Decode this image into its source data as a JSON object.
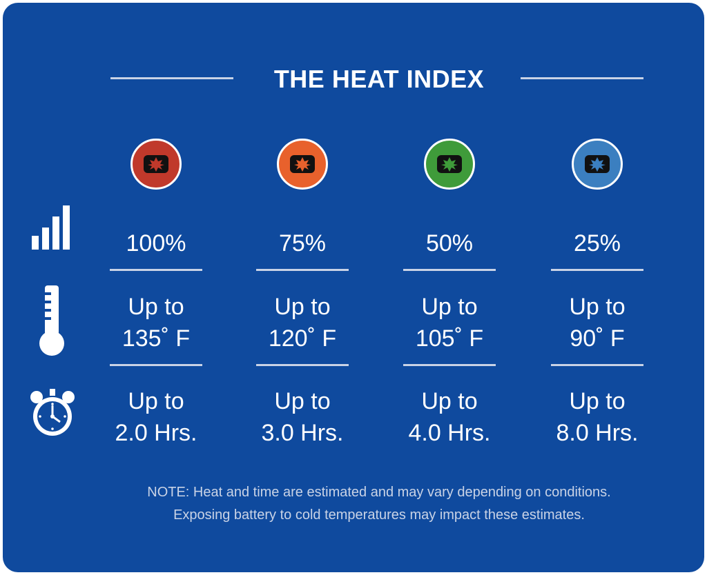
{
  "title": "THE HEAT INDEX",
  "colors": {
    "background": "#0f4a9e",
    "red": "#c0392b",
    "orange": "#e8612c",
    "green": "#3f9b3a",
    "blue": "#3b7fc0"
  },
  "row_icons": [
    "signal-bars-icon",
    "thermometer-icon",
    "stopwatch-icon"
  ],
  "levels": [
    {
      "color": "#c0392b",
      "percent": "100%",
      "temp_line1": "Up to",
      "temp_line2": "135˚ F",
      "time_line1": "Up to",
      "time_line2": "2.0 Hrs."
    },
    {
      "color": "#e8612c",
      "percent": "75%",
      "temp_line1": "Up to",
      "temp_line2": "120˚ F",
      "time_line1": "Up to",
      "time_line2": "3.0 Hrs."
    },
    {
      "color": "#3f9b3a",
      "percent": "50%",
      "temp_line1": "Up to",
      "temp_line2": "105˚ F",
      "time_line1": "Up to",
      "time_line2": "4.0 Hrs."
    },
    {
      "color": "#3b7fc0",
      "percent": "25%",
      "temp_line1": "Up to",
      "temp_line2": "90˚ F",
      "time_line1": "Up to",
      "time_line2": "8.0 Hrs."
    }
  ],
  "note_line1": "NOTE: Heat and time are estimated and may vary depending on conditions.",
  "note_line2": "Exposing battery to cold temperatures may impact these estimates."
}
